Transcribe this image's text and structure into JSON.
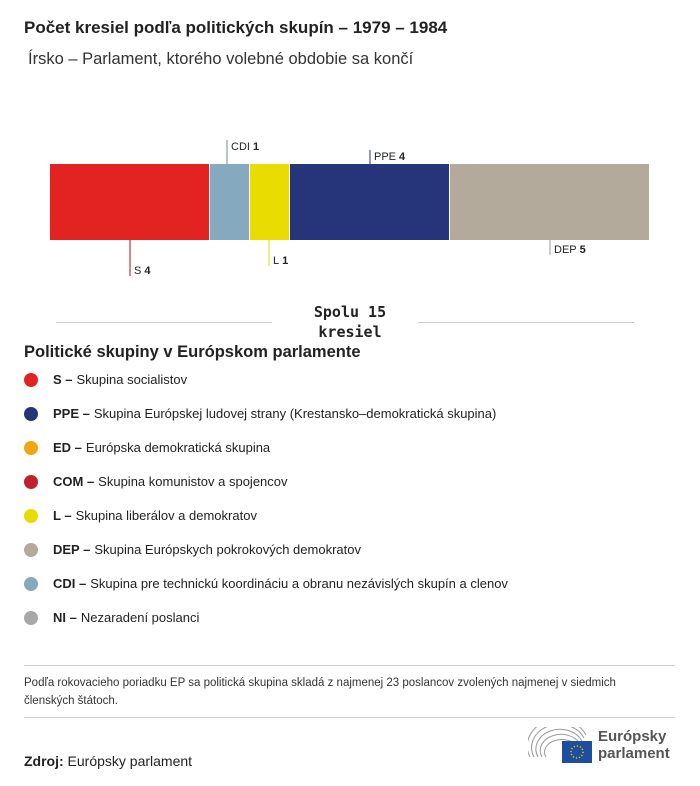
{
  "title": "Počet kresiel podľa politických skupín – 1979 – 1984",
  "subtitle": "Írsko – Parlament, ktorého volebné obdobie sa končí",
  "chart_data": {
    "type": "bar",
    "orientation": "horizontal-stacked",
    "categories": [
      "S",
      "CDI",
      "L",
      "PPE",
      "DEP"
    ],
    "values": [
      4,
      1,
      1,
      4,
      5
    ],
    "colors": [
      "#e32322",
      "#85a9bf",
      "#e8dc00",
      "#26357a",
      "#b3aa9c"
    ],
    "total_label": "Spolu 15 kresiel"
  },
  "legend": {
    "title": "Politické skupiny v Európskom parlamente",
    "items": [
      {
        "code": "S –",
        "label": "Skupina socialistov",
        "color": "#e32322"
      },
      {
        "code": "PPE –",
        "label": "Skupina Európskej ludovej strany (Krestansko–demokratická skupina)",
        "color": "#26357a"
      },
      {
        "code": "ED –",
        "label": "Európska demokratická skupina",
        "color": "#f0a70f"
      },
      {
        "code": "COM –",
        "label": "Skupina komunistov a spojencov",
        "color": "#c0212a"
      },
      {
        "code": "L –",
        "label": "Skupina liberálov a demokratov",
        "color": "#e8dc00"
      },
      {
        "code": "DEP –",
        "label": "Skupina Európskych pokrokových demokratov",
        "color": "#b3aa9c"
      },
      {
        "code": "CDI –",
        "label": "Skupina pre technickú koordináciu a obranu nezávislých skupín a clenov",
        "color": "#85a9bf"
      },
      {
        "code": "NI –",
        "label": "Nezaradení poslanci",
        "color": "#a8a8a8"
      }
    ]
  },
  "note": "Podľa rokovacieho poriadku EP sa politická skupina skladá z najmenej 23 poslancov zvolených najmenej v siedmich členských štátoch.",
  "source": {
    "label": "Zdroj:",
    "value": "Európsky parlament"
  },
  "logo": {
    "line1": "Európsky",
    "line2": "parlament"
  }
}
